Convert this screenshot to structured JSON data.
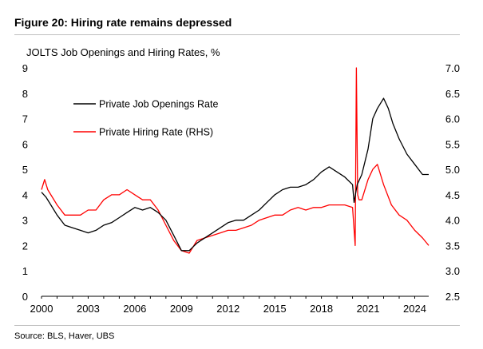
{
  "figure_title": "Figure 20: Hiring rate remains depressed",
  "source": "Source: BLS, Haver, UBS",
  "colors": {
    "openings": "#000000",
    "hiring": "#ff0000",
    "rule": "#bfbfbf"
  },
  "chart_data": {
    "type": "line",
    "title": "JOLTS Job Openings and Hiring Rates, %",
    "legend_position": "upper-left",
    "grid": false,
    "x_axis": {
      "ticks": [
        2000,
        2003,
        2006,
        2009,
        2012,
        2015,
        2018,
        2021,
        2024
      ],
      "range": [
        2000,
        2024.9
      ]
    },
    "y_left": {
      "ticks": [
        0,
        1,
        2,
        3,
        4,
        5,
        6,
        7,
        8,
        9
      ],
      "range": [
        0,
        9
      ]
    },
    "y_right": {
      "ticks": [
        "2.5",
        "3.0",
        "3.5",
        "4.0",
        "4.5",
        "5.0",
        "5.5",
        "6.0",
        "6.5",
        "7.0"
      ],
      "range": [
        2.5,
        7.0
      ]
    },
    "series": [
      {
        "name": "Private Job Openings Rate",
        "axis": "left",
        "color": "#000000",
        "x": [
          2000.0,
          2000.3,
          2000.6,
          2001.0,
          2001.5,
          2002.0,
          2002.5,
          2003.0,
          2003.5,
          2004.0,
          2004.5,
          2005.0,
          2005.5,
          2006.0,
          2006.5,
          2007.0,
          2007.5,
          2008.0,
          2008.5,
          2009.0,
          2009.5,
          2010.0,
          2010.5,
          2011.0,
          2011.5,
          2012.0,
          2012.5,
          2013.0,
          2013.5,
          2014.0,
          2014.5,
          2015.0,
          2015.5,
          2016.0,
          2016.5,
          2017.0,
          2017.5,
          2018.0,
          2018.5,
          2019.0,
          2019.5,
          2020.0,
          2020.1,
          2020.3,
          2020.6,
          2021.0,
          2021.3,
          2021.6,
          2022.0,
          2022.3,
          2022.6,
          2023.0,
          2023.5,
          2024.0,
          2024.5,
          2024.9
        ],
        "y": [
          4.1,
          3.9,
          3.6,
          3.2,
          2.8,
          2.7,
          2.6,
          2.5,
          2.6,
          2.8,
          2.9,
          3.1,
          3.3,
          3.5,
          3.4,
          3.5,
          3.3,
          3.0,
          2.4,
          1.8,
          1.8,
          2.1,
          2.3,
          2.5,
          2.7,
          2.9,
          3.0,
          3.0,
          3.2,
          3.4,
          3.7,
          4.0,
          4.2,
          4.3,
          4.3,
          4.4,
          4.6,
          4.9,
          5.1,
          4.9,
          4.7,
          4.4,
          3.7,
          4.4,
          4.8,
          5.8,
          7.0,
          7.4,
          7.8,
          7.4,
          6.8,
          6.2,
          5.6,
          5.2,
          4.8,
          4.8
        ]
      },
      {
        "name": "Private Hiring Rate (RHS)",
        "axis": "right",
        "color": "#ff0000",
        "x": [
          2000.0,
          2000.2,
          2000.4,
          2000.6,
          2001.0,
          2001.5,
          2002.0,
          2002.5,
          2003.0,
          2003.5,
          2004.0,
          2004.5,
          2005.0,
          2005.5,
          2006.0,
          2006.5,
          2007.0,
          2007.5,
          2008.0,
          2008.5,
          2009.0,
          2009.5,
          2010.0,
          2010.5,
          2011.0,
          2011.5,
          2012.0,
          2012.5,
          2013.0,
          2013.5,
          2014.0,
          2014.5,
          2015.0,
          2015.5,
          2016.0,
          2016.5,
          2017.0,
          2017.5,
          2018.0,
          2018.5,
          2019.0,
          2019.5,
          2020.0,
          2020.17,
          2020.25,
          2020.33,
          2020.42,
          2020.6,
          2021.0,
          2021.3,
          2021.6,
          2022.0,
          2022.5,
          2023.0,
          2023.5,
          2024.0,
          2024.5,
          2024.9
        ],
        "y": [
          4.6,
          4.8,
          4.6,
          4.5,
          4.3,
          4.1,
          4.1,
          4.1,
          4.2,
          4.2,
          4.4,
          4.5,
          4.5,
          4.6,
          4.5,
          4.4,
          4.4,
          4.2,
          3.9,
          3.6,
          3.4,
          3.35,
          3.6,
          3.65,
          3.7,
          3.75,
          3.8,
          3.8,
          3.85,
          3.9,
          4.0,
          4.05,
          4.1,
          4.1,
          4.2,
          4.25,
          4.2,
          4.25,
          4.25,
          4.3,
          4.3,
          4.3,
          4.25,
          3.5,
          7.0,
          4.5,
          4.4,
          4.4,
          4.8,
          5.0,
          5.1,
          4.7,
          4.3,
          4.1,
          4.0,
          3.8,
          3.65,
          3.5
        ]
      }
    ]
  }
}
